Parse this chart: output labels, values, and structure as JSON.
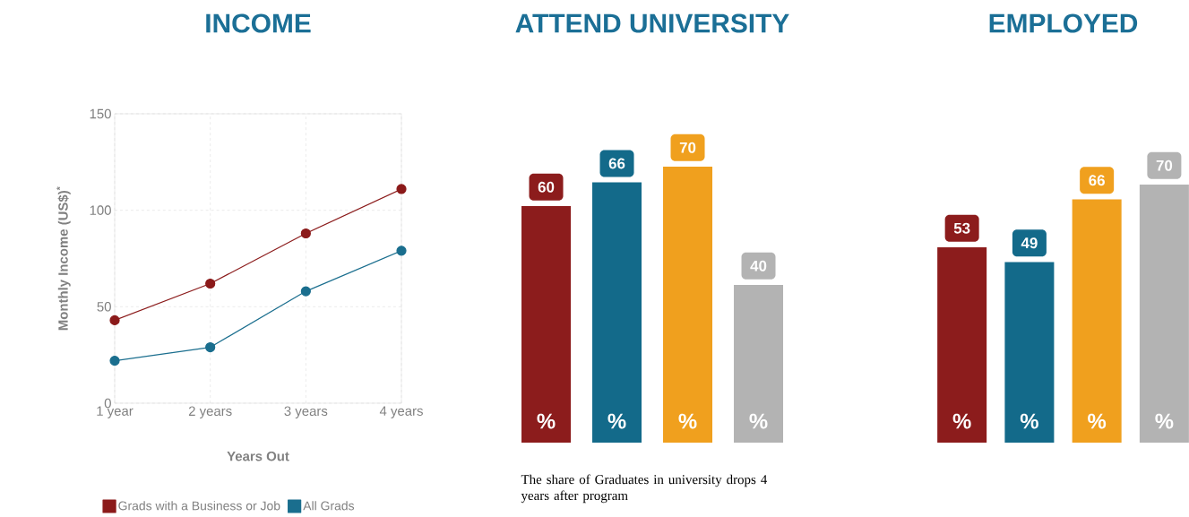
{
  "chart_data": [
    {
      "type": "line",
      "title": "INCOME",
      "categories": [
        "1 year",
        "2 years",
        "3 years",
        "4 years"
      ],
      "xlabel": "Years Out",
      "ylabel": "Monthly Income (US$)$^{*}$",
      "ylim": [
        0,
        150
      ],
      "yticks": [
        0,
        50,
        100,
        150
      ],
      "grid": true,
      "legend": "bottom",
      "marker": "circle",
      "series": [
        {
          "name": "Grads with a Business or Job",
          "color": "#8b1a1a",
          "values": [
            43,
            62,
            88,
            111
          ]
        },
        {
          "name": "All Grads",
          "color": "#1a6e8e",
          "values": [
            22,
            29,
            58,
            79
          ]
        }
      ]
    },
    {
      "type": "bar",
      "title": "ATTEND UNIVERSITY",
      "categories": [
        null,
        null,
        null,
        null
      ],
      "values": [
        60,
        66,
        70,
        40
      ],
      "colors": [
        "#8c1c1c",
        "#136a8a",
        "#f0a01e",
        "#b3b3b3"
      ],
      "data_labels": true,
      "annotations": [
        "%",
        "%",
        "%",
        "%",
        "The share of Graduates in university drops 4 years after program"
      ]
    },
    {
      "type": "bar",
      "title": "EMPLOYED",
      "categories": [
        null,
        null,
        null,
        null
      ],
      "values": [
        53,
        49,
        66,
        70
      ],
      "colors": [
        "#8c1c1c",
        "#136a8a",
        "#f0a01e",
        "#b3b3b3"
      ],
      "data_labels": true,
      "annotations": [
        "%",
        "%",
        "%",
        "%"
      ]
    }
  ]
}
